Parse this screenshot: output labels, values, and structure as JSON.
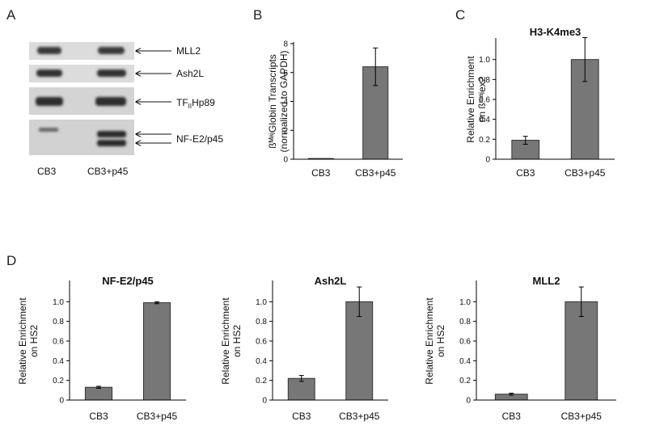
{
  "panel_labels": {
    "A": "A",
    "B": "B",
    "C": "C",
    "D": "D"
  },
  "blot": {
    "bands": [
      {
        "label": "MLL2",
        "sub": ""
      },
      {
        "label": "Ash2L",
        "sub": ""
      },
      {
        "label": "TF",
        "sub": "II",
        "suffix": "Hp89"
      },
      {
        "label": "NF-E2/p45",
        "sub": ""
      }
    ],
    "lanes": [
      "CB3",
      "CB3+p45"
    ]
  },
  "chart_data": [
    {
      "id": "B",
      "type": "bar",
      "title": "",
      "ylabel_lines": [
        "ßᴹᵃʲGlobin Transcripts",
        "(normalized to GAPDH)"
      ],
      "categories": [
        "CB3",
        "CB3+p45"
      ],
      "values": [
        0.05,
        6.4
      ],
      "errors": [
        0,
        1.3
      ],
      "ylim": [
        0,
        8
      ],
      "yticks": [
        "0",
        "2",
        "4",
        "6",
        "8"
      ],
      "ytick_values": [
        0,
        2,
        4,
        6,
        8
      ]
    },
    {
      "id": "C",
      "type": "bar",
      "title": "H3-K4me3",
      "ylabel_lines": [
        "Relative Enrichment",
        "on ßᵐᵃʲex2"
      ],
      "categories": [
        "CB3",
        "CB3+p45"
      ],
      "values": [
        0.19,
        1.0
      ],
      "errors": [
        0.04,
        0.22
      ],
      "ylim": [
        0,
        1.2
      ],
      "yticks": [
        "0",
        "0.2",
        "0.4",
        "0.6",
        "0.8",
        "1.0"
      ],
      "ytick_values": [
        0,
        0.2,
        0.4,
        0.6,
        0.8,
        1.0
      ]
    },
    {
      "id": "D1",
      "type": "bar",
      "title": "NF-E2/p45",
      "ylabel_lines": [
        "Relative Enrichment",
        "on HS2"
      ],
      "categories": [
        "CB3",
        "CB3+p45"
      ],
      "values": [
        0.13,
        0.99
      ],
      "errors": [
        0.01,
        0.01
      ],
      "ylim": [
        0,
        1.2
      ],
      "yticks": [
        "0",
        "0.2",
        "0.4",
        "0.6",
        "0.8",
        "1.0"
      ],
      "ytick_values": [
        0,
        0.2,
        0.4,
        0.6,
        0.8,
        1.0
      ]
    },
    {
      "id": "D2",
      "type": "bar",
      "title": "Ash2L",
      "ylabel_lines": [
        "Relative Enrichment",
        "on HS2"
      ],
      "categories": [
        "CB3",
        "CB3+p45"
      ],
      "values": [
        0.22,
        1.0
      ],
      "errors": [
        0.03,
        0.15
      ],
      "ylim": [
        0,
        1.2
      ],
      "yticks": [
        "0",
        "0.2",
        "0.4",
        "0.6",
        "0.8",
        "1.0"
      ],
      "ytick_values": [
        0,
        0.2,
        0.4,
        0.6,
        0.8,
        1.0
      ]
    },
    {
      "id": "D3",
      "type": "bar",
      "title": "MLL2",
      "ylabel_lines": [
        "Relative Enrichment",
        "on HS2"
      ],
      "categories": [
        "CB3",
        "CB3+p45"
      ],
      "values": [
        0.06,
        1.0
      ],
      "errors": [
        0.01,
        0.15
      ],
      "ylim": [
        0,
        1.2
      ],
      "yticks": [
        "0",
        "0.2",
        "0.4",
        "0.6",
        "0.8",
        "1.0"
      ],
      "ytick_values": [
        0,
        0.2,
        0.4,
        0.6,
        0.8,
        1.0
      ]
    }
  ]
}
